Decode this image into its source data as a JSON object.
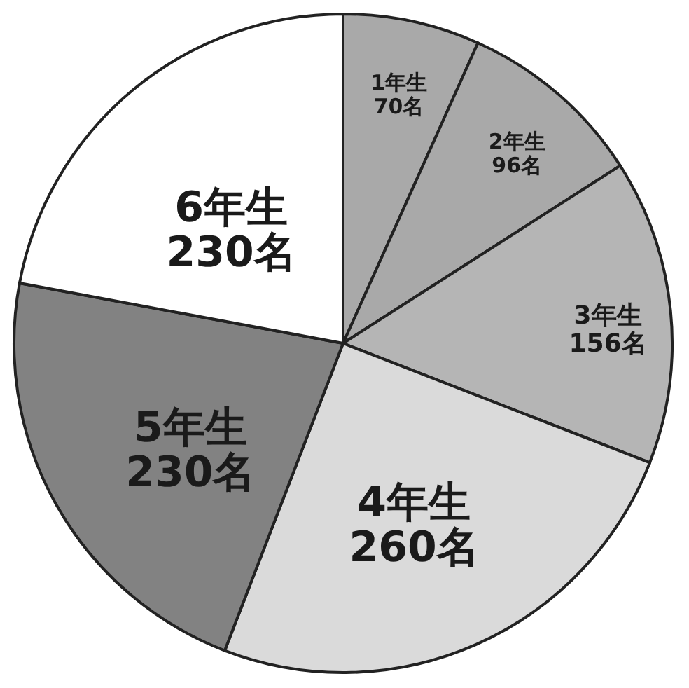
{
  "chart_data": {
    "type": "pie",
    "categories": [
      "1年生",
      "2年生",
      "3年生",
      "4年生",
      "5年生",
      "6年生"
    ],
    "values": [
      70,
      96,
      156,
      260,
      230,
      230
    ],
    "value_labels": [
      "70名",
      "96名",
      "156名",
      "260名",
      "230名",
      "230名"
    ],
    "colors": [
      "#a9a9a9",
      "#a9a9a9",
      "#b5b5b5",
      "#dadada",
      "#828282",
      "#ffffff"
    ],
    "legend": false
  }
}
